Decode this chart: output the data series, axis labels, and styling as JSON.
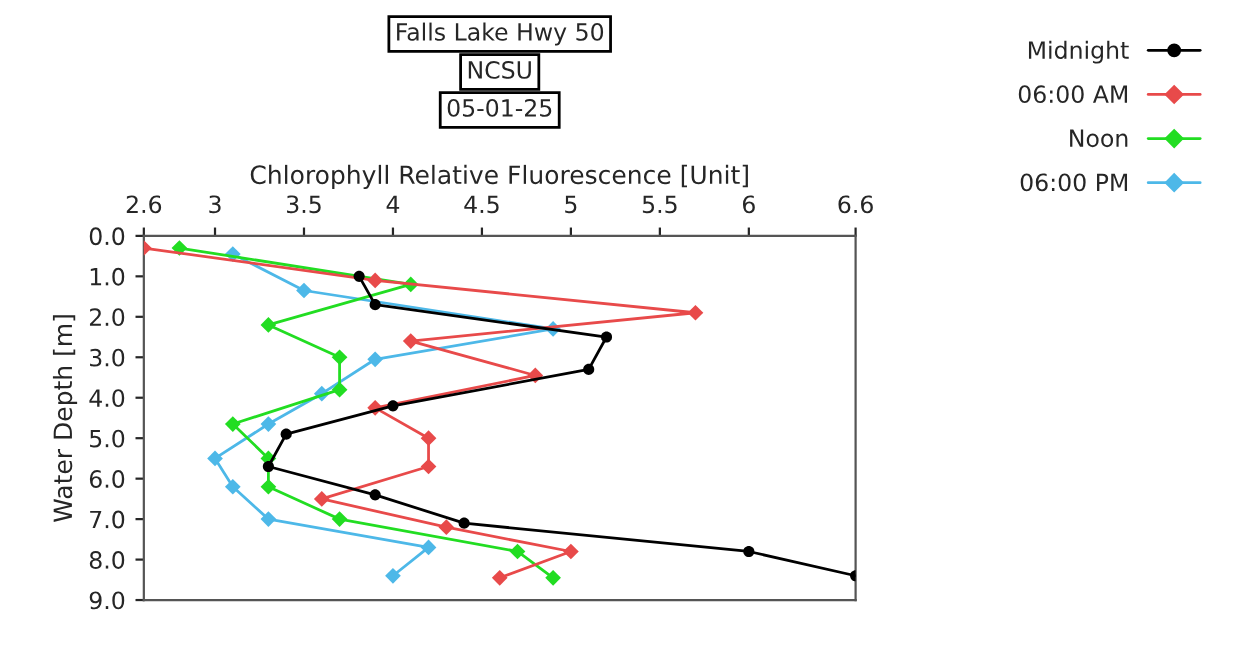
{
  "chart_data": {
    "type": "line",
    "title": "Falls Lake Hwy 50",
    "subtitle": "NCSU",
    "annotations": [
      "05-01-25"
    ],
    "xlabel": "Chlorophyll Relative Fluorescence [Unit]",
    "ylabel": "Water Depth [m]",
    "xlim": [
      2.6,
      6.6
    ],
    "xticks": [
      2.6,
      3,
      3.5,
      4,
      4.5,
      5,
      5.5,
      6,
      6.6
    ],
    "ylim": [
      9,
      0
    ],
    "yticks": [
      {
        "value": 0,
        "label": "0.0"
      },
      {
        "value": 1,
        "label": "1.0"
      },
      {
        "value": 2,
        "label": "2.0"
      },
      {
        "value": 3,
        "label": "3.0"
      },
      {
        "value": 4,
        "label": "4.0"
      },
      {
        "value": 5,
        "label": "5.0"
      },
      {
        "value": 6,
        "label": "6.0"
      },
      {
        "value": 7,
        "label": "7.0"
      },
      {
        "value": 8,
        "label": "8.0"
      },
      {
        "value": 9,
        "label": "9.0"
      }
    ],
    "grid": false,
    "legend": "top right",
    "line_style": "solid",
    "series": [
      {
        "name": "Midnight",
        "color": "#000000",
        "marker": "circle",
        "x": [
          3.81,
          3.9,
          5.2,
          5.1,
          4.0,
          3.4,
          3.3,
          3.9,
          4.4,
          6.0,
          6.6
        ],
        "values": [
          1.0,
          1.7,
          2.5,
          3.3,
          4.2,
          4.9,
          5.7,
          6.4,
          7.1,
          7.8,
          8.4
        ]
      },
      {
        "name": "06:00 AM",
        "color": "#e84a4a",
        "marker": "diamond",
        "x": [
          2.6,
          3.9,
          5.7,
          4.1,
          4.8,
          3.9,
          4.2,
          4.2,
          3.6,
          4.3,
          5.0,
          4.6
        ],
        "values": [
          0.3,
          1.1,
          1.9,
          2.6,
          3.45,
          4.25,
          5.0,
          5.7,
          6.5,
          7.2,
          7.8,
          8.45
        ]
      },
      {
        "name": "Noon",
        "color": "#22dd22",
        "marker": "diamond",
        "x": [
          2.8,
          4.1,
          3.3,
          3.7,
          3.7,
          3.1,
          3.3,
          3.3,
          3.7,
          4.7,
          4.9
        ],
        "values": [
          0.3,
          1.2,
          2.2,
          3.0,
          3.8,
          4.65,
          5.5,
          6.2,
          7.0,
          7.8,
          8.45
        ]
      },
      {
        "name": "06:00 PM",
        "color": "#4db8e8",
        "marker": "diamond",
        "x": [
          3.1,
          3.5,
          4.9,
          3.9,
          3.6,
          3.3,
          3.0,
          3.1,
          3.3,
          4.2,
          4.0
        ],
        "values": [
          0.45,
          1.35,
          2.3,
          3.05,
          3.9,
          4.65,
          5.5,
          6.2,
          7.0,
          7.7,
          8.4
        ]
      }
    ]
  }
}
